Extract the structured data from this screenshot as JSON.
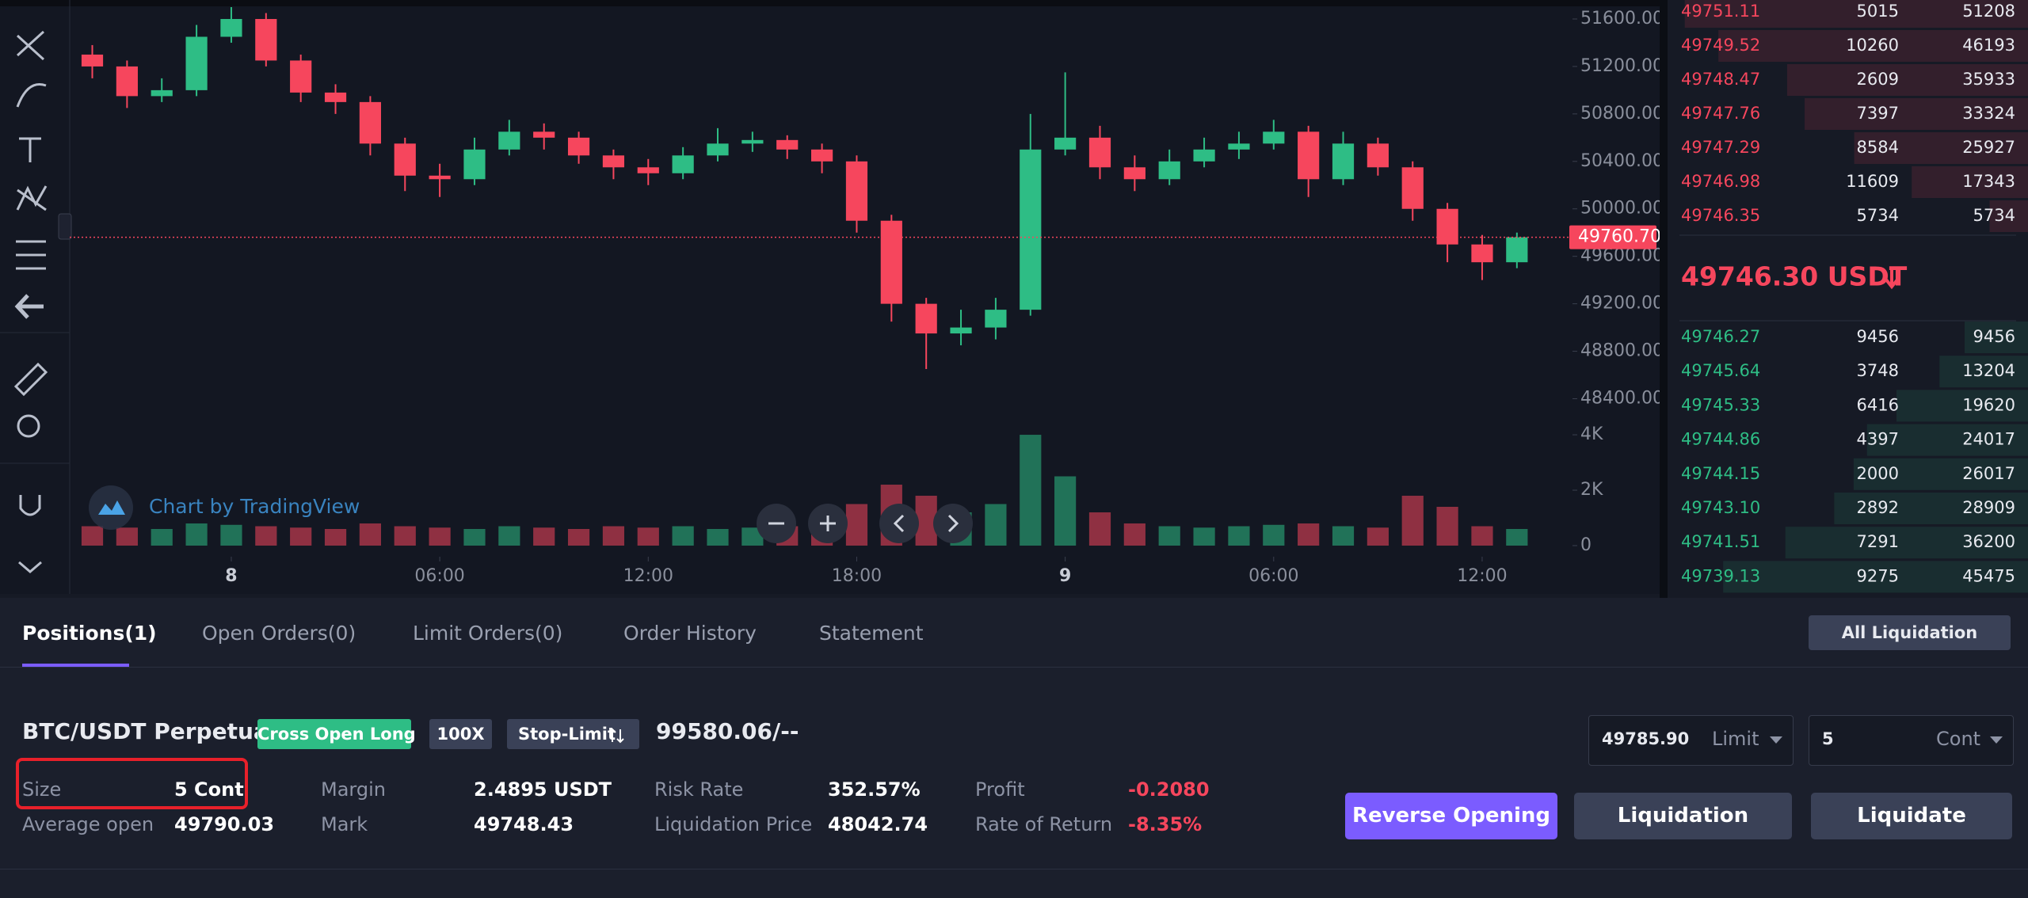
{
  "chart_data": {
    "type": "candlestick",
    "watermark": "Chart by TradingView",
    "up_color": "#2ebd85",
    "down_color": "#f6465d",
    "grid": false,
    "candles": {
      "x": [
        -4,
        -3,
        -2,
        -1,
        0,
        1,
        2,
        3,
        4,
        5,
        6,
        7,
        8,
        9,
        10,
        11,
        12,
        13,
        14,
        15,
        16,
        17,
        18,
        19,
        20,
        21,
        22,
        23,
        24,
        25,
        26,
        27,
        28,
        29,
        30,
        31,
        32,
        33,
        34,
        35,
        36,
        37
      ],
      "open": [
        51300,
        51200,
        50950,
        51000,
        51450,
        51600,
        51250,
        50980,
        50900,
        50550,
        50280,
        50250,
        50500,
        50650,
        50600,
        50450,
        50350,
        50300,
        50450,
        50550,
        50580,
        50500,
        50400,
        49900,
        49200,
        48950,
        49000,
        49150,
        50500,
        50600,
        50350,
        50250,
        50400,
        50500,
        50550,
        50650,
        50250,
        50550,
        50350,
        50000,
        49700,
        49550
      ],
      "high": [
        51380,
        51250,
        51100,
        51550,
        51700,
        51650,
        51300,
        51050,
        50950,
        50600,
        50380,
        50600,
        50750,
        50720,
        50650,
        50500,
        50420,
        50520,
        50680,
        50650,
        50620,
        50550,
        50450,
        49950,
        49250,
        49150,
        49250,
        50800,
        51150,
        50700,
        50450,
        50500,
        50600,
        50650,
        50750,
        50700,
        50650,
        50600,
        50400,
        50050,
        49780,
        49800
      ],
      "low": [
        51100,
        50850,
        50900,
        50950,
        51400,
        51200,
        50900,
        50800,
        50450,
        50150,
        50100,
        50200,
        50450,
        50500,
        50380,
        50250,
        50200,
        50250,
        50400,
        50480,
        50420,
        50300,
        49800,
        49050,
        48650,
        48850,
        48900,
        49100,
        50450,
        50250,
        50150,
        50200,
        50350,
        50420,
        50500,
        50100,
        50200,
        50280,
        49900,
        49550,
        49400,
        49500
      ],
      "close": [
        51200,
        50950,
        51000,
        51450,
        51600,
        51250,
        50980,
        50900,
        50550,
        50280,
        50250,
        50500,
        50650,
        50600,
        50450,
        50350,
        50300,
        50450,
        50550,
        50580,
        50500,
        50400,
        49900,
        49200,
        48950,
        49000,
        49150,
        50500,
        50600,
        50350,
        50250,
        50400,
        50500,
        50550,
        50650,
        50250,
        50550,
        50350,
        50000,
        49700,
        49550,
        49760.7
      ],
      "volume": [
        700,
        650,
        600,
        800,
        750,
        700,
        650,
        600,
        800,
        700,
        650,
        600,
        700,
        650,
        600,
        700,
        650,
        700,
        600,
        650,
        700,
        800,
        1500,
        2200,
        1800,
        1200,
        1500,
        4000,
        2500,
        1200,
        800,
        700,
        650,
        700,
        750,
        800,
        700,
        650,
        1800,
        1400,
        700,
        600
      ]
    },
    "xlim": [
      -4.65,
      38.6
    ],
    "xticks": [
      {
        "value": 0,
        "label": "8"
      },
      {
        "value": 6,
        "label": "06:00"
      },
      {
        "value": 12,
        "label": "12:00"
      },
      {
        "value": 18,
        "label": "18:00"
      },
      {
        "value": 24,
        "label": "9"
      },
      {
        "value": 30,
        "label": "06:00"
      },
      {
        "value": 36,
        "label": "12:00"
      }
    ],
    "ylim": [
      48390,
      51760
    ],
    "yticks": [
      {
        "value": 51600,
        "label": "51600.00"
      },
      {
        "value": 51200,
        "label": "51200.00"
      },
      {
        "value": 50800,
        "label": "50800.00"
      },
      {
        "value": 50400,
        "label": "50400.00"
      },
      {
        "value": 50000,
        "label": "50000.00"
      },
      {
        "value": 49600,
        "label": "49600.00"
      },
      {
        "value": 49200,
        "label": "49200.00"
      },
      {
        "value": 48800,
        "label": "48800.00"
      },
      {
        "value": 48400,
        "label": "48400.00"
      }
    ],
    "y2lim": [
      0,
      4830
    ],
    "y2ticks": [
      {
        "value": 4000,
        "label": "4K"
      },
      {
        "value": 2000,
        "label": "2K"
      },
      0
    ],
    "last_price": {
      "value": 49760.7,
      "label": "49760.70"
    }
  },
  "order_book": {
    "asks": [
      [
        "49751.11",
        5015,
        51208
      ],
      [
        "49749.52",
        10260,
        46193
      ],
      [
        "49748.47",
        2609,
        35933
      ],
      [
        "49747.76",
        7397,
        33324
      ],
      [
        "49747.29",
        8584,
        25927
      ],
      [
        "49746.98",
        11609,
        17343
      ],
      [
        "49746.35",
        5734,
        5734
      ]
    ],
    "mid_price": "49746.30 USDT",
    "bids": [
      [
        "49746.27",
        9456,
        9456
      ],
      [
        "49745.64",
        3748,
        13204
      ],
      [
        "49745.33",
        6416,
        19620
      ],
      [
        "49744.86",
        4397,
        24017
      ],
      [
        "49744.15",
        2000,
        26017
      ],
      [
        "49743.10",
        2892,
        28909
      ],
      [
        "49741.51",
        7291,
        36200
      ],
      [
        "49739.13",
        9275,
        45475
      ]
    ]
  },
  "tabs": [
    "Positions(1)",
    "Open Orders(0)",
    "Limit Orders(0)",
    "Order History",
    "Statement"
  ],
  "all_liquidation": "All Liquidation",
  "position": {
    "symbol": "BTC/USDT Perpetual",
    "tags": [
      "Cross Open Long",
      "100X",
      "Stop-Limit"
    ],
    "stop_value": "99580.06/--",
    "fields": [
      [
        "Size",
        "5 Cont"
      ],
      [
        "Average open",
        "49790.03"
      ],
      [
        "Margin",
        "2.4895 USDT"
      ],
      [
        "Mark",
        "49748.43"
      ],
      [
        "Risk Rate",
        "352.57%"
      ],
      [
        "Liquidation Price",
        "48042.74"
      ],
      [
        "Profit",
        "-0.2080"
      ],
      [
        "Rate of Return",
        "-8.35%"
      ]
    ],
    "price_input": "49785.90",
    "price_type": "Limit",
    "qty_input": "5",
    "qty_unit": "Cont",
    "buttons": [
      "Reverse Opening",
      "Liquidation",
      "Liquidate"
    ]
  }
}
